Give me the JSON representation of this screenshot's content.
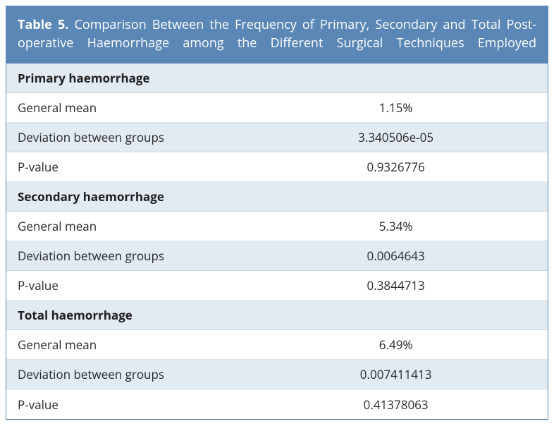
{
  "title_bold": "Table 5.",
  "title_rest": " Comparison Between the Frequency of Primary, Secondary and Total Post-operative Haemorrhage among the Different Surgical Techniques Employed",
  "colors": {
    "header_bg": "#5a87b5",
    "header_text": "#ffffff",
    "section_bg": "#e2eaf2",
    "alt_bg": "#e2eaf2",
    "row_bg": "#ffffff",
    "border": "#c9d6e4",
    "text": "#2a2a2a"
  },
  "sections": [
    {
      "heading": "Primary haemorrhage",
      "rows": [
        {
          "label": "General mean",
          "value": "1.15%"
        },
        {
          "label": "Deviation between groups",
          "value": "3.340506e-05"
        },
        {
          "label": "P-value",
          "value": "0.9326776"
        }
      ]
    },
    {
      "heading": "Secondary haemorrhage",
      "rows": [
        {
          "label": "General mean",
          "value": "5.34%"
        },
        {
          "label": "Deviation between groups",
          "value": "0.0064643"
        },
        {
          "label": "P-value",
          "value": "0.3844713"
        }
      ]
    },
    {
      "heading": "Total haemorrhage",
      "rows": [
        {
          "label": "General mean",
          "value": "6.49%"
        },
        {
          "label": "Deviation between groups",
          "value": "0.007411413"
        },
        {
          "label": "P-value",
          "value": "0.41378063"
        }
      ]
    }
  ]
}
